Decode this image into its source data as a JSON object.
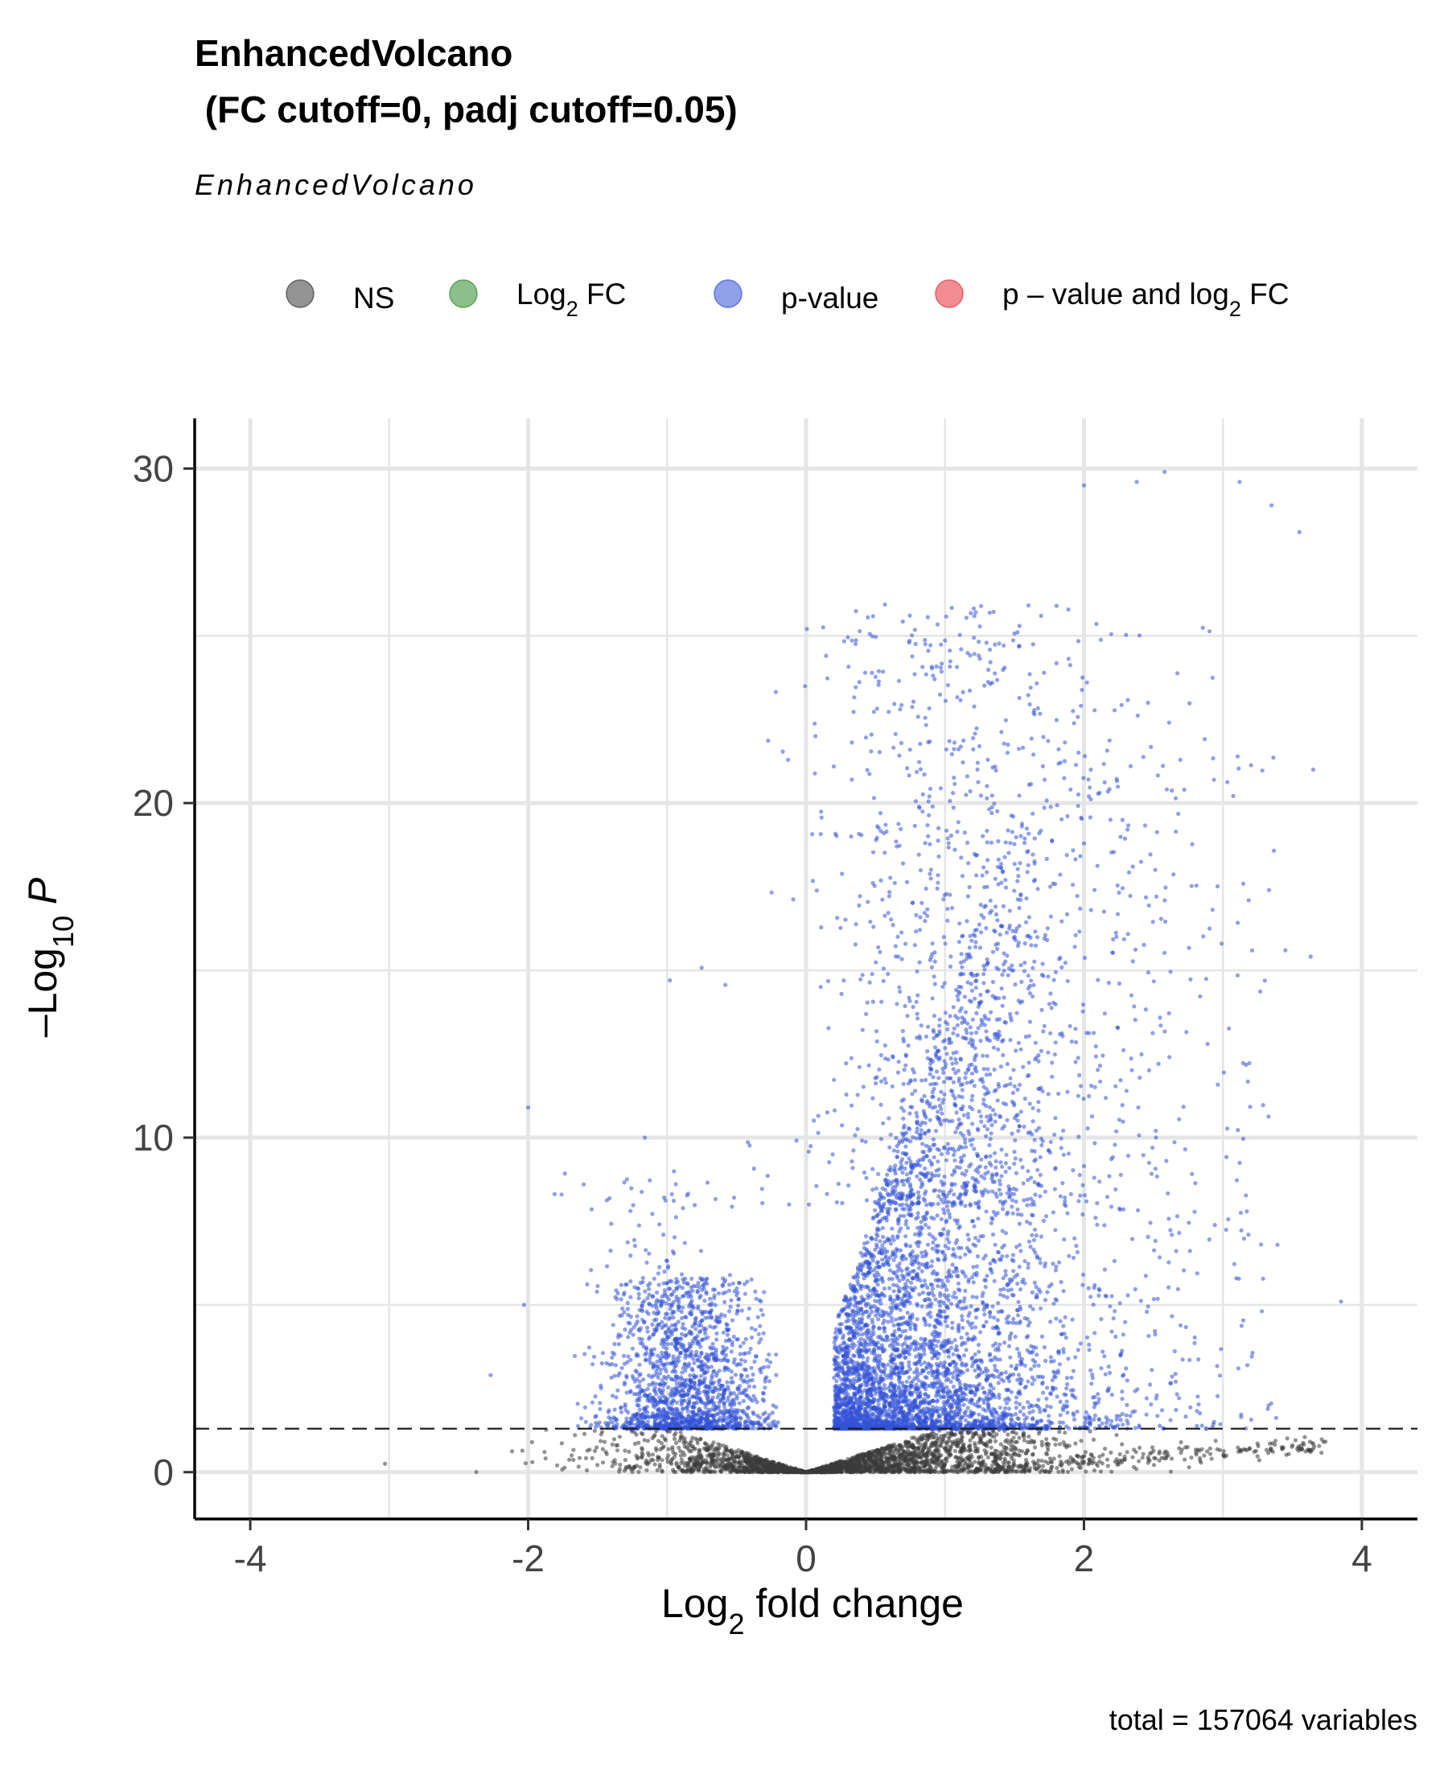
{
  "colors": {
    "ns": "#3a3a3a",
    "log2fc": "#2e8b2e",
    "pvalue": "#3352d6",
    "both": "#e8303c",
    "grid": "#e6e6e6",
    "threshold": "#222222"
  },
  "chart_data": {
    "type": "scatter",
    "title_line1": "EnhancedVolcano",
    "title_line2": " (FC cutoff=0, padj cutoff=0.05)",
    "subtitle": "EnhancedVolcano",
    "caption": "total = 157064 variables",
    "xlabel": {
      "base": "Log",
      "sub": "2",
      "rest": " fold change"
    },
    "ylabel": {
      "base": "–Log",
      "sub": "10",
      "rest": " P"
    },
    "xlim": [
      -4.4,
      4.4
    ],
    "ylim": [
      -1.4,
      31.5
    ],
    "xticks": [
      -4,
      -2,
      0,
      2,
      4
    ],
    "yticks": [
      0,
      10,
      20,
      30
    ],
    "threshold_y": 1.3,
    "fc_cutoff": 0,
    "padj_cutoff": 0.05,
    "grid": true,
    "legend": {
      "position": "top",
      "entries": [
        {
          "key": "ns",
          "label": "NS"
        },
        {
          "key": "log2fc",
          "label": "Log",
          "sub": "2",
          "rest": " FC"
        },
        {
          "key": "pvalue",
          "label": "p-value"
        },
        {
          "key": "both",
          "label": "p – value and log",
          "sub": "2",
          "rest": " FC"
        }
      ]
    },
    "highlight_points": [
      {
        "x": -3.03,
        "y": 0.25,
        "class": "ns"
      },
      {
        "x": -2.0,
        "y": 10.9,
        "class": "pvalue"
      },
      {
        "x": -1.16,
        "y": 10.0,
        "class": "pvalue"
      },
      {
        "x": -0.98,
        "y": 14.7,
        "class": "pvalue"
      },
      {
        "x": -1.6,
        "y": 8.6,
        "class": "pvalue"
      },
      {
        "x": -2.03,
        "y": 5.0,
        "class": "pvalue"
      },
      {
        "x": -2.27,
        "y": 2.9,
        "class": "pvalue"
      },
      {
        "x": 2.58,
        "y": 29.9,
        "class": "pvalue"
      },
      {
        "x": 3.12,
        "y": 29.6,
        "class": "pvalue"
      },
      {
        "x": 3.35,
        "y": 28.9,
        "class": "pvalue"
      },
      {
        "x": 3.55,
        "y": 28.1,
        "class": "pvalue"
      },
      {
        "x": 3.65,
        "y": 21.0,
        "class": "pvalue"
      },
      {
        "x": 3.45,
        "y": 15.6,
        "class": "pvalue"
      },
      {
        "x": 3.85,
        "y": 5.1,
        "class": "pvalue"
      },
      {
        "x": 2.0,
        "y": 29.5,
        "class": "pvalue"
      },
      {
        "x": 2.38,
        "y": 29.6,
        "class": "pvalue"
      },
      {
        "x": 1.16,
        "y": 20.8,
        "class": "pvalue"
      },
      {
        "x": 0.8,
        "y": 13.7,
        "class": "pvalue"
      }
    ]
  }
}
